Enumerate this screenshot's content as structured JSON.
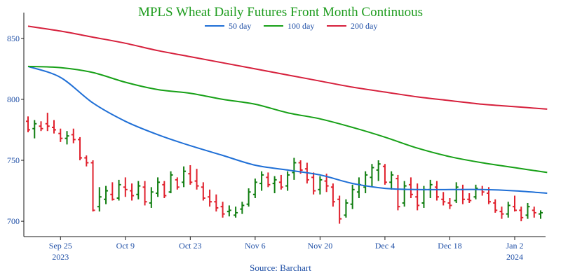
{
  "colors": {
    "title": "#1e9c1e",
    "ma50": "#1f6fd6",
    "ma100": "#17a017",
    "ma200": "#d6203c",
    "bar_up": "#0f7d0f",
    "bar_down": "#e0202c",
    "axis": "#1a1a1a",
    "tick_text": "#1f4fa6"
  },
  "chart_data": {
    "type": "line",
    "title": "MPLS Wheat Daily Futures Front Month Continuous",
    "source": "Source: Barchart",
    "ylim": [
      688,
      870
    ],
    "yticks": [
      700,
      750,
      800,
      850
    ],
    "xtick_labels": [
      {
        "label": "Sep 25",
        "sub": "2023",
        "index": 5
      },
      {
        "label": "Oct 9",
        "sub": "",
        "index": 15
      },
      {
        "label": "Oct 23",
        "sub": "",
        "index": 25
      },
      {
        "label": "Nov 6",
        "sub": "",
        "index": 35
      },
      {
        "label": "Nov 20",
        "sub": "",
        "index": 45
      },
      {
        "label": "Dec 4",
        "sub": "",
        "index": 55
      },
      {
        "label": "Dec 18",
        "sub": "",
        "index": 65
      },
      {
        "label": "Jan 2",
        "sub": "2024",
        "index": 75
      }
    ],
    "legend": [
      "50 day",
      "100 day",
      "200 day"
    ],
    "series": [
      {
        "name": "50 day",
        "points": [
          [
            0,
            827
          ],
          [
            5,
            818
          ],
          [
            10,
            797
          ],
          [
            15,
            782
          ],
          [
            20,
            771
          ],
          [
            25,
            762
          ],
          [
            30,
            754
          ],
          [
            35,
            746
          ],
          [
            40,
            742
          ],
          [
            45,
            738
          ],
          [
            50,
            731
          ],
          [
            55,
            727
          ],
          [
            60,
            726
          ],
          [
            65,
            726
          ],
          [
            70,
            726
          ],
          [
            75,
            725
          ],
          [
            80,
            723
          ]
        ]
      },
      {
        "name": "100 day",
        "points": [
          [
            0,
            827
          ],
          [
            5,
            826
          ],
          [
            10,
            822
          ],
          [
            15,
            814
          ],
          [
            20,
            808
          ],
          [
            25,
            805
          ],
          [
            30,
            800
          ],
          [
            35,
            796
          ],
          [
            40,
            789
          ],
          [
            45,
            784
          ],
          [
            50,
            777
          ],
          [
            55,
            769
          ],
          [
            60,
            760
          ],
          [
            65,
            753
          ],
          [
            70,
            748
          ],
          [
            75,
            744
          ],
          [
            80,
            740
          ]
        ]
      },
      {
        "name": "200 day",
        "points": [
          [
            0,
            860
          ],
          [
            5,
            856
          ],
          [
            10,
            851
          ],
          [
            15,
            846
          ],
          [
            20,
            840
          ],
          [
            25,
            835
          ],
          [
            30,
            830
          ],
          [
            35,
            825
          ],
          [
            40,
            820
          ],
          [
            45,
            815
          ],
          [
            50,
            810
          ],
          [
            55,
            806
          ],
          [
            60,
            802
          ],
          [
            65,
            799
          ],
          [
            70,
            796
          ],
          [
            75,
            794
          ],
          [
            80,
            792
          ]
        ]
      }
    ],
    "ohlc": [
      [
        782,
        786,
        773,
        775
      ],
      [
        776,
        783,
        768,
        780
      ],
      [
        778,
        782,
        774,
        776
      ],
      [
        780,
        789,
        774,
        778
      ],
      [
        777,
        783,
        772,
        775
      ],
      [
        772,
        776,
        765,
        768
      ],
      [
        768,
        774,
        763,
        770
      ],
      [
        771,
        776,
        764,
        767
      ],
      [
        767,
        769,
        750,
        752
      ],
      [
        752,
        754,
        745,
        748
      ],
      [
        748,
        750,
        708,
        709
      ],
      [
        712,
        728,
        708,
        720
      ],
      [
        718,
        729,
        714,
        725
      ],
      [
        722,
        732,
        717,
        718
      ],
      [
        719,
        734,
        717,
        730
      ],
      [
        728,
        736,
        720,
        726
      ],
      [
        725,
        731,
        717,
        721
      ],
      [
        722,
        733,
        718,
        729
      ],
      [
        728,
        733,
        713,
        716
      ],
      [
        715,
        728,
        711,
        724
      ],
      [
        723,
        736,
        720,
        732
      ],
      [
        730,
        733,
        719,
        721
      ],
      [
        724,
        741,
        723,
        738
      ],
      [
        734,
        736,
        726,
        728
      ],
      [
        732,
        745,
        728,
        741
      ],
      [
        739,
        746,
        730,
        732
      ],
      [
        733,
        743,
        726,
        729
      ],
      [
        728,
        732,
        717,
        719
      ],
      [
        720,
        726,
        712,
        716
      ],
      [
        716,
        722,
        708,
        711
      ],
      [
        712,
        716,
        703,
        706
      ],
      [
        708,
        713,
        704,
        709
      ],
      [
        705,
        712,
        703,
        707
      ],
      [
        710,
        716,
        706,
        713
      ],
      [
        714,
        727,
        712,
        724
      ],
      [
        722,
        735,
        719,
        732
      ],
      [
        731,
        741,
        725,
        738
      ],
      [
        736,
        740,
        728,
        730
      ],
      [
        731,
        737,
        723,
        734
      ],
      [
        732,
        738,
        726,
        728
      ],
      [
        729,
        741,
        725,
        738
      ],
      [
        740,
        752,
        734,
        748
      ],
      [
        748,
        750,
        739,
        742
      ],
      [
        743,
        748,
        731,
        734
      ],
      [
        736,
        740,
        722,
        725
      ],
      [
        726,
        737,
        722,
        734
      ],
      [
        733,
        739,
        724,
        729
      ],
      [
        728,
        731,
        712,
        716
      ],
      [
        718,
        721,
        698,
        702
      ],
      [
        705,
        718,
        703,
        715
      ],
      [
        714,
        730,
        710,
        726
      ],
      [
        724,
        736,
        719,
        730
      ],
      [
        728,
        741,
        723,
        738
      ],
      [
        736,
        747,
        728,
        744
      ],
      [
        742,
        750,
        733,
        747
      ],
      [
        745,
        747,
        730,
        732
      ],
      [
        732,
        741,
        726,
        738
      ],
      [
        735,
        738,
        709,
        712
      ],
      [
        715,
        733,
        712,
        729
      ],
      [
        730,
        736,
        719,
        722
      ],
      [
        720,
        731,
        709,
        713
      ],
      [
        715,
        729,
        711,
        726
      ],
      [
        726,
        734,
        719,
        730
      ],
      [
        728,
        733,
        717,
        720
      ],
      [
        718,
        724,
        713,
        716
      ],
      [
        715,
        719,
        710,
        713
      ],
      [
        717,
        732,
        715,
        728
      ],
      [
        726,
        730,
        714,
        718
      ],
      [
        718,
        723,
        715,
        717
      ],
      [
        720,
        730,
        718,
        727
      ],
      [
        726,
        729,
        721,
        724
      ],
      [
        723,
        728,
        714,
        716
      ],
      [
        715,
        718,
        707,
        709
      ],
      [
        708,
        712,
        702,
        706
      ],
      [
        706,
        716,
        703,
        713
      ],
      [
        712,
        721,
        708,
        709
      ],
      [
        709,
        712,
        700,
        703
      ],
      [
        705,
        715,
        702,
        712
      ],
      [
        709,
        712,
        703,
        707
      ],
      [
        706,
        709,
        702,
        707
      ]
    ]
  }
}
